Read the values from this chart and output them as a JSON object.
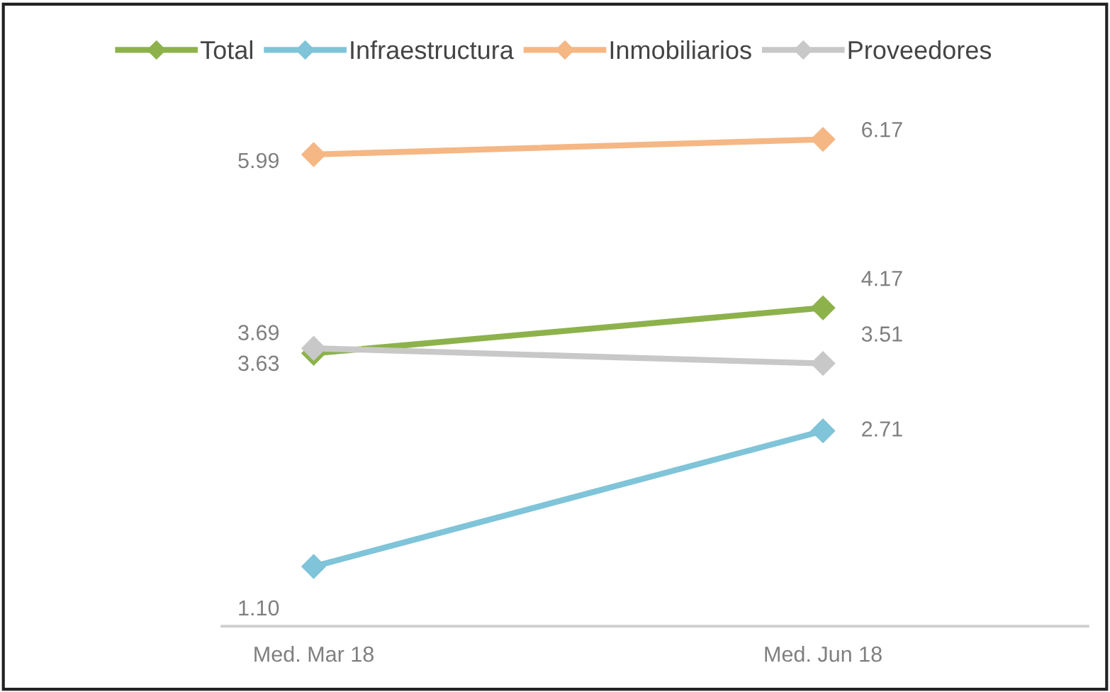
{
  "chart_data": {
    "type": "line",
    "categories": [
      "Med. Mar 18",
      "Med. Jun 18"
    ],
    "tick_labels": "x",
    "grid": false,
    "legend": "top",
    "marker": "diamond",
    "line_style": "solid",
    "series": [
      {
        "name": "Total",
        "color": "#8db24c",
        "values": [
          3.63,
          4.17
        ],
        "value_labels": [
          "3.63",
          "4.17"
        ]
      },
      {
        "name": "Infraestructura",
        "color": "#7fc4d8",
        "values": [
          1.1,
          2.71
        ],
        "value_labels": [
          "1.10",
          "2.71"
        ]
      },
      {
        "name": "Inmobiliarios",
        "color": "#f5b784",
        "values": [
          5.99,
          6.17
        ],
        "value_labels": [
          "5.99",
          "6.17"
        ]
      },
      {
        "name": "Proveedores",
        "color": "#c8c8c8",
        "values": [
          3.69,
          3.51
        ],
        "value_labels": [
          "3.69",
          "3.51"
        ]
      }
    ]
  }
}
